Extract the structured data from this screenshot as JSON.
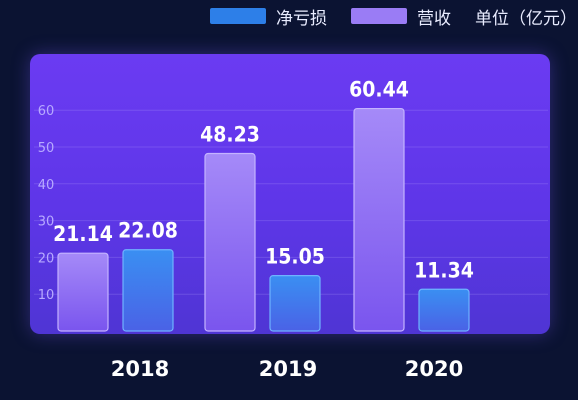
{
  "legend": {
    "series0": "净亏损",
    "series1": "营收",
    "unit": "单位（亿元）"
  },
  "colors": {
    "net_loss": "#2d7fe8",
    "revenue": "#9a7cf5",
    "panel": "#5e36e8",
    "background": "#0b1332"
  },
  "chart_data": {
    "type": "bar",
    "categories": [
      "2018",
      "2019",
      "2020"
    ],
    "series": [
      {
        "name": "营收",
        "values": [
          21.14,
          48.23,
          60.44
        ]
      },
      {
        "name": "净亏损",
        "values": [
          22.08,
          15.05,
          11.34
        ]
      }
    ],
    "yticks": [
      10,
      20,
      30,
      40,
      50,
      60
    ],
    "ylim": [
      0,
      70
    ],
    "grid": true,
    "legend_position": "top-right",
    "unit": "单位（亿元）"
  }
}
